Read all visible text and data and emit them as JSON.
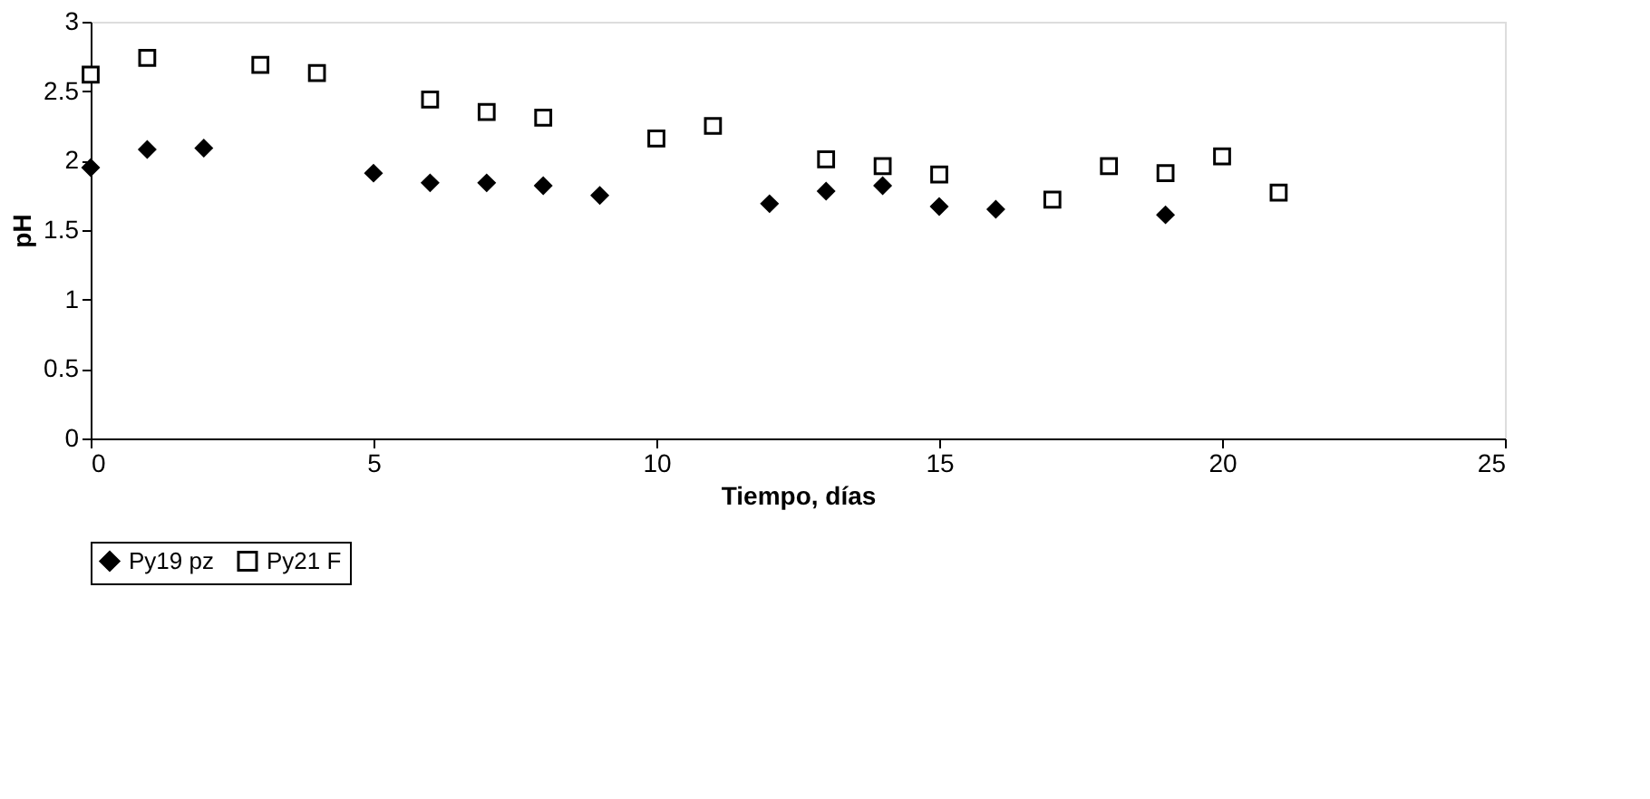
{
  "chart_data": {
    "type": "scatter",
    "xlabel": "Tiempo, días",
    "ylabel": "pH",
    "xlim": [
      0,
      25
    ],
    "xticks": [
      0,
      5,
      10,
      15,
      20,
      25
    ],
    "ylim": [
      0,
      3
    ],
    "yticks": [
      0,
      0.5,
      1,
      1.5,
      2,
      2.5,
      3
    ],
    "grid": false,
    "legend": "bottom",
    "series": [
      {
        "name": "Py19 pz",
        "color": "#000000",
        "marker": "diamond",
        "x": [
          0,
          1,
          2,
          5,
          6,
          7,
          8,
          9,
          12,
          13,
          14,
          15,
          16,
          19
        ],
        "values": [
          1.95,
          2.08,
          2.09,
          1.91,
          1.84,
          1.84,
          1.82,
          1.75,
          1.69,
          1.78,
          1.82,
          1.67,
          1.65,
          1.61
        ]
      },
      {
        "name": "Py21 F",
        "color": "#000000",
        "marker": "square",
        "x": [
          0,
          1,
          3,
          4,
          6,
          7,
          8,
          10,
          11,
          13,
          14,
          15,
          17,
          18,
          19,
          20,
          21
        ],
        "values": [
          2.62,
          2.74,
          2.69,
          2.63,
          2.44,
          2.35,
          2.31,
          2.16,
          2.25,
          2.01,
          1.96,
          1.9,
          1.72,
          1.96,
          1.91,
          2.03,
          1.77
        ]
      }
    ]
  }
}
